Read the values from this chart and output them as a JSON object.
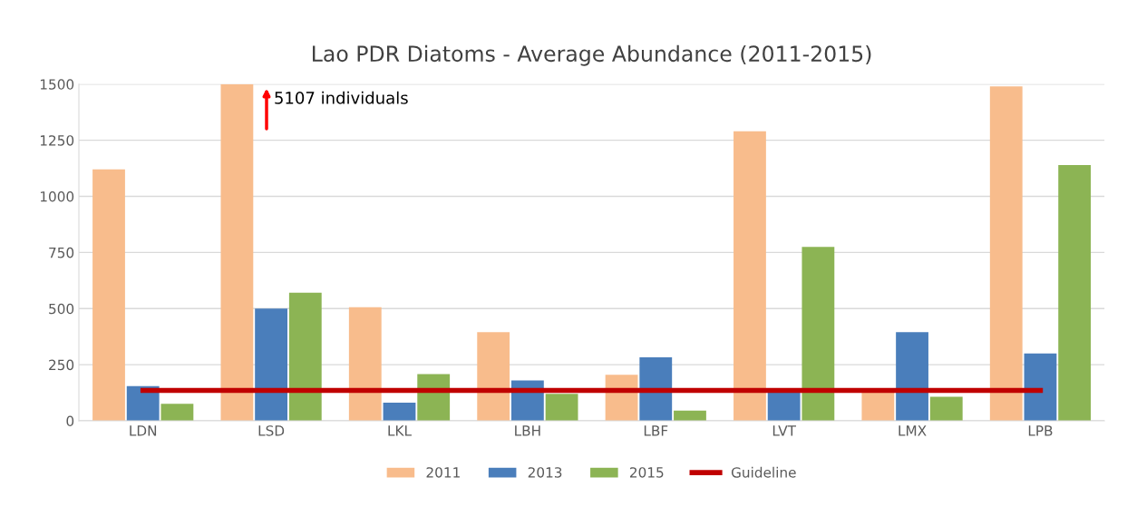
{
  "chart_data": {
    "type": "bar",
    "title": "Lao PDR Diatoms - Average Abundance (2011-2015)",
    "categories": [
      "LDN",
      "LSD",
      "LKL",
      "LBH",
      "LBF",
      "LVT",
      "LMX",
      "LPB"
    ],
    "series": [
      {
        "name": "2011",
        "color": "#f8bc8c",
        "values": [
          1120,
          1500,
          506,
          395,
          205,
          1290,
          130,
          1490
        ]
      },
      {
        "name": "2013",
        "color": "#4a7ebb",
        "values": [
          155,
          500,
          81,
          180,
          283,
          130,
          395,
          300
        ]
      },
      {
        "name": "2015",
        "color": "#8cb454",
        "values": [
          76,
          571,
          208,
          120,
          45,
          775,
          107,
          1140
        ]
      },
      {
        "name": "Guideline",
        "type": "line",
        "color": "#c00000",
        "values": [
          135,
          135,
          135,
          135,
          135,
          135,
          135,
          135
        ]
      }
    ],
    "ylim": [
      0,
      1500
    ],
    "yticks": [
      0,
      250,
      500,
      750,
      1000,
      1250,
      1500
    ],
    "grid": "y",
    "legend": "bottom",
    "annotations": [
      "5107 individuals"
    ]
  }
}
